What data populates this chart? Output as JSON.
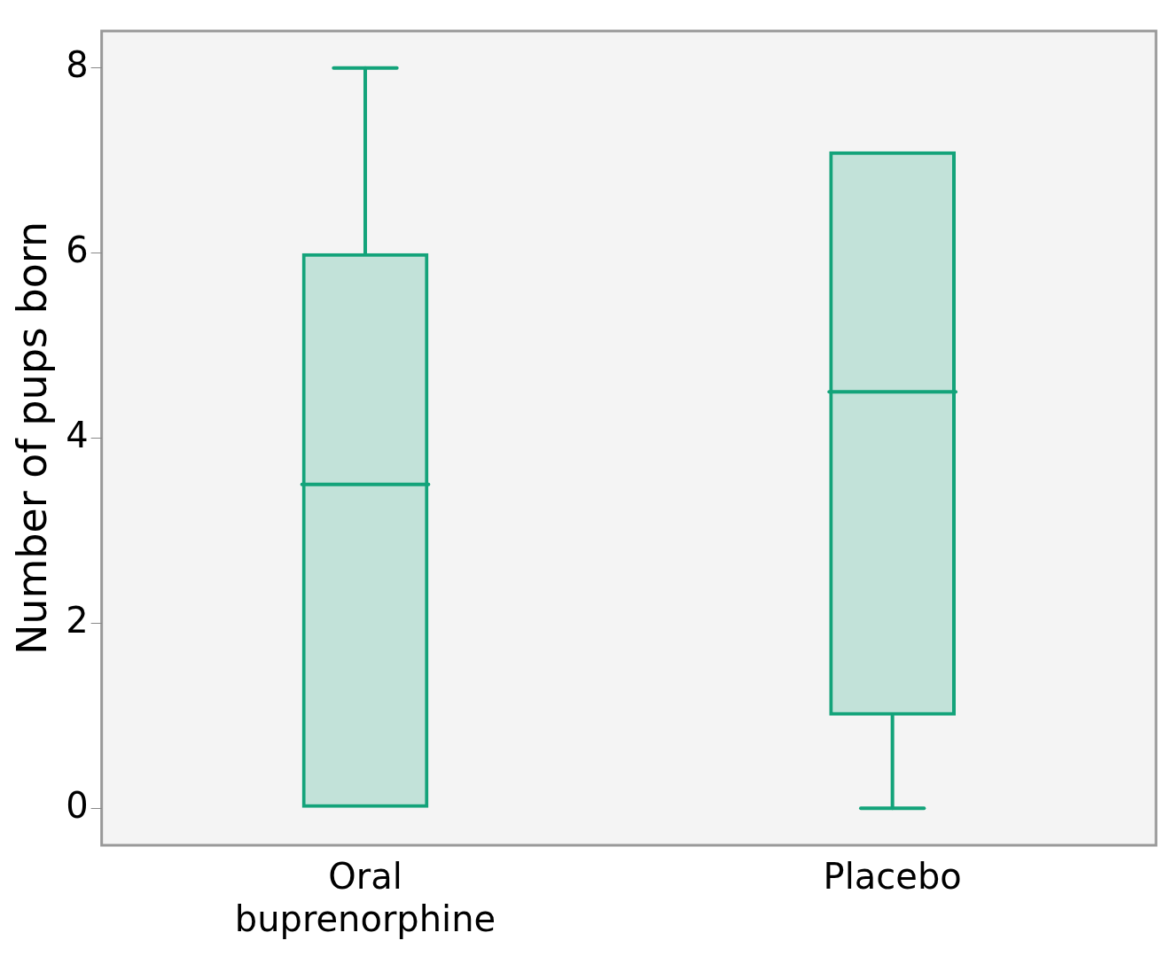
{
  "chart_data": {
    "type": "box",
    "ylabel": "Number of pups born",
    "categories": [
      "Oral buprenorphine",
      "Placebo"
    ],
    "boxes": [
      {
        "low": 0,
        "q1": 0,
        "median": 3.5,
        "q3": 6,
        "high": 8
      },
      {
        "low": 0,
        "q1": 1,
        "median": 4.5,
        "q3": 7.1,
        "high": 7.1
      }
    ],
    "color": "#13a37a",
    "ylim": [
      -0.4,
      8.4
    ],
    "yticks": [
      0,
      2,
      4,
      6,
      8
    ]
  }
}
